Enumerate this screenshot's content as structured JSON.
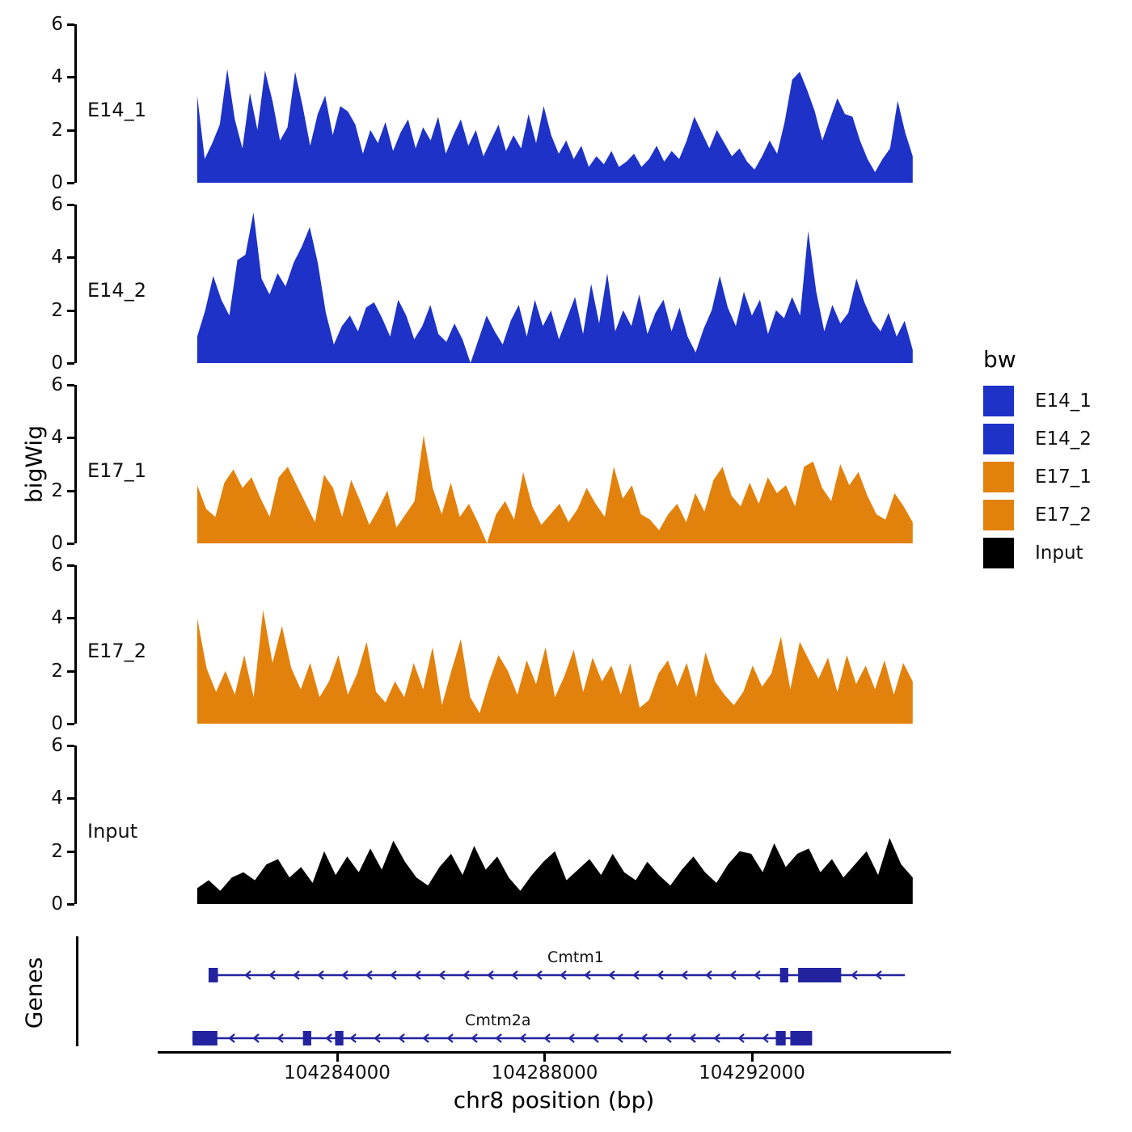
{
  "chart_data": {
    "type": "area",
    "title": "",
    "xlabel": "chr8 position (bp)",
    "ylabel": "bigWig",
    "ylim": [
      0,
      6
    ],
    "y_ticks": [
      0,
      2,
      4,
      6
    ],
    "x_ticks": [
      104284000,
      104288000,
      104292000
    ],
    "x_domain": [
      104278930,
      104295820
    ],
    "signal_x_range": [
      104281300,
      104295100
    ],
    "grid": "off",
    "legend_position": "right",
    "tracks": [
      {
        "name": "E14_1",
        "color": "#1e32c8",
        "values": [
          3.3,
          0.9,
          1.5,
          2.2,
          4.3,
          2.4,
          1.3,
          3.4,
          2.0,
          4.25,
          3.1,
          1.6,
          2.1,
          4.2,
          2.9,
          1.4,
          2.6,
          3.3,
          1.8,
          2.9,
          2.7,
          2.2,
          1.1,
          2.0,
          1.5,
          2.3,
          1.2,
          1.9,
          2.4,
          1.3,
          2.1,
          1.6,
          2.5,
          1.1,
          1.8,
          2.4,
          1.4,
          2.0,
          1.0,
          1.6,
          2.2,
          1.2,
          1.8,
          1.3,
          2.6,
          1.5,
          2.9,
          1.8,
          1.1,
          1.6,
          0.9,
          1.4,
          0.6,
          1.0,
          0.7,
          1.2,
          0.6,
          0.8,
          1.1,
          0.6,
          0.9,
          1.4,
          0.8,
          1.2,
          0.9,
          1.6,
          2.5,
          1.9,
          1.3,
          2.0,
          1.5,
          1.0,
          1.3,
          0.8,
          0.5,
          1.0,
          1.6,
          1.1,
          2.3,
          3.9,
          4.2,
          3.5,
          2.7,
          1.6,
          2.4,
          3.2,
          2.6,
          2.5,
          1.6,
          0.9,
          0.4,
          0.9,
          1.3,
          3.1,
          1.9,
          1.0
        ]
      },
      {
        "name": "E14_2",
        "color": "#1e32c8",
        "values": [
          1.0,
          2.0,
          3.3,
          2.4,
          1.8,
          3.9,
          4.1,
          5.7,
          3.2,
          2.6,
          3.4,
          2.9,
          3.8,
          4.4,
          5.15,
          3.8,
          1.9,
          0.7,
          1.4,
          1.8,
          1.2,
          2.1,
          2.3,
          1.7,
          1.0,
          2.4,
          1.8,
          0.9,
          1.4,
          2.2,
          1.1,
          0.8,
          1.5,
          0.9,
          0.0,
          0.9,
          1.8,
          1.2,
          0.7,
          1.6,
          2.2,
          1.0,
          2.4,
          1.4,
          2.0,
          0.9,
          1.7,
          2.5,
          1.1,
          3.0,
          1.5,
          3.4,
          1.2,
          2.0,
          1.4,
          2.6,
          1.1,
          1.9,
          2.4,
          1.2,
          2.1,
          1.0,
          0.4,
          1.3,
          2.0,
          3.3,
          2.1,
          1.4,
          2.7,
          1.8,
          2.4,
          1.1,
          2.0,
          1.7,
          2.5,
          1.8,
          5.0,
          2.7,
          1.2,
          2.2,
          1.5,
          1.9,
          3.2,
          2.3,
          1.6,
          1.2,
          1.9,
          1.0,
          1.6,
          0.5
        ]
      },
      {
        "name": "E17_1",
        "color": "#e2820d",
        "values": [
          2.2,
          1.3,
          1.0,
          2.3,
          2.8,
          2.1,
          2.5,
          1.7,
          1.0,
          2.5,
          2.9,
          2.2,
          1.5,
          0.8,
          2.6,
          2.1,
          1.0,
          2.4,
          1.6,
          0.7,
          1.3,
          2.0,
          0.6,
          1.1,
          1.6,
          4.1,
          2.1,
          1.1,
          2.3,
          1.0,
          1.5,
          0.8,
          0.0,
          1.1,
          1.6,
          0.9,
          2.7,
          1.4,
          0.7,
          1.1,
          1.5,
          0.8,
          1.3,
          2.1,
          1.5,
          1.0,
          2.9,
          1.7,
          2.2,
          1.1,
          0.9,
          0.5,
          1.1,
          1.5,
          0.8,
          1.9,
          1.2,
          2.4,
          2.9,
          1.8,
          1.4,
          2.3,
          1.5,
          2.5,
          1.9,
          2.2,
          1.4,
          2.9,
          3.1,
          2.1,
          1.6,
          3.0,
          2.2,
          2.7,
          1.8,
          1.1,
          0.9,
          1.9,
          1.4,
          0.8
        ]
      },
      {
        "name": "E17_2",
        "color": "#e2820d",
        "values": [
          4.0,
          2.1,
          1.2,
          2.0,
          1.1,
          2.6,
          1.0,
          4.3,
          2.3,
          3.7,
          2.1,
          1.3,
          2.3,
          1.0,
          1.6,
          2.6,
          1.1,
          1.9,
          3.1,
          1.2,
          0.8,
          1.6,
          1.0,
          2.3,
          1.3,
          2.9,
          0.7,
          2.0,
          3.2,
          1.0,
          0.4,
          1.6,
          2.6,
          2.0,
          1.1,
          2.4,
          1.5,
          2.9,
          1.0,
          1.8,
          2.8,
          1.2,
          2.5,
          1.6,
          2.2,
          1.1,
          2.3,
          0.6,
          0.9,
          1.9,
          2.4,
          1.4,
          2.3,
          1.0,
          2.7,
          1.6,
          1.1,
          0.7,
          1.2,
          2.2,
          1.4,
          1.9,
          3.3,
          1.3,
          3.1,
          2.4,
          1.7,
          2.5,
          1.2,
          2.6,
          1.5,
          2.2,
          1.3,
          2.4,
          1.1,
          2.3,
          1.6
        ]
      },
      {
        "name": "Input",
        "color": "#000000",
        "values": [
          0.6,
          0.9,
          0.5,
          1.0,
          1.2,
          0.9,
          1.5,
          1.7,
          1.0,
          1.4,
          0.8,
          2.0,
          1.1,
          1.8,
          1.2,
          2.1,
          1.3,
          2.4,
          1.6,
          1.0,
          0.7,
          1.4,
          1.9,
          1.1,
          2.2,
          1.3,
          1.8,
          1.0,
          0.5,
          1.1,
          1.6,
          2.0,
          0.9,
          1.3,
          1.7,
          1.1,
          1.9,
          1.2,
          0.9,
          1.6,
          1.1,
          0.7,
          1.3,
          1.8,
          1.2,
          0.8,
          1.5,
          2.0,
          1.9,
          1.2,
          2.3,
          1.4,
          1.9,
          2.1,
          1.2,
          1.7,
          1.0,
          1.5,
          2.0,
          1.1,
          2.5,
          1.5,
          1.0
        ]
      }
    ],
    "genes": {
      "label": "Genes",
      "color": "#2323a0",
      "items": [
        {
          "name": "Cmtm1",
          "strand": "-",
          "start": 104281520,
          "end": 104294950,
          "label_pos": 104288600,
          "exons": [
            [
              104281520,
              104281700
            ],
            [
              104292540,
              104292700
            ],
            [
              104292890,
              104293720
            ]
          ]
        },
        {
          "name": "Cmtm2a",
          "strand": "-",
          "start": 104281210,
          "end": 104293160,
          "label_pos": 104287100,
          "exons": [
            [
              104281210,
              104281690
            ],
            [
              104283340,
              104283500
            ],
            [
              104283960,
              104284120
            ],
            [
              104292460,
              104292650
            ],
            [
              104292740,
              104293160
            ]
          ]
        }
      ]
    },
    "legend": {
      "title": "bw",
      "entries": [
        {
          "label": "E14_1",
          "color": "#1e32c8"
        },
        {
          "label": "E14_2",
          "color": "#1e32c8"
        },
        {
          "label": "E17_1",
          "color": "#e2820d"
        },
        {
          "label": "E17_2",
          "color": "#e2820d"
        },
        {
          "label": "Input",
          "color": "#000000"
        }
      ]
    }
  }
}
